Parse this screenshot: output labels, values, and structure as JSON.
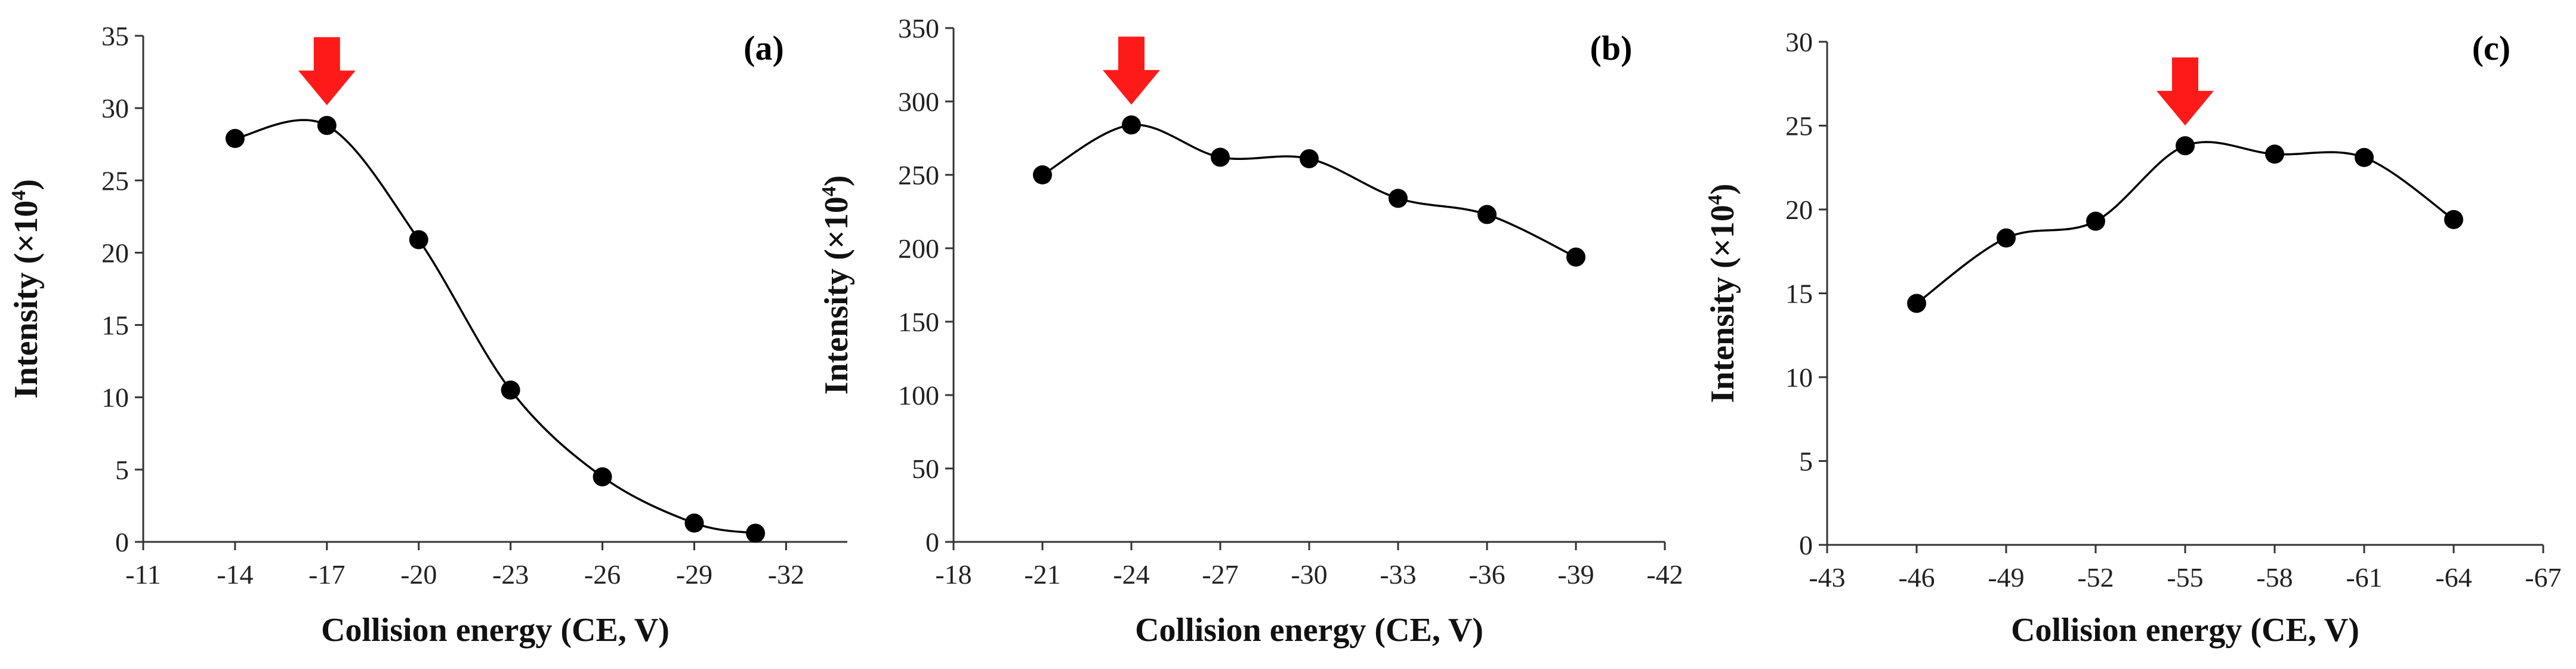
{
  "chart_data": [
    {
      "type": "line",
      "panel_label": "(a)",
      "title": "",
      "xlabel": "Collision energy (CE, V)",
      "ylabel": "Intensity (×10",
      "ylabel_sup": "4",
      "ylabel_end": ")",
      "xlim": [
        -11,
        -34
      ],
      "xticks": [
        -11,
        -14,
        -17,
        -20,
        -23,
        -26,
        -29,
        -32
      ],
      "ylim": [
        0,
        35
      ],
      "yticks": [
        0,
        5,
        10,
        15,
        20,
        25,
        30,
        35
      ],
      "series": [
        {
          "name": "Intensity",
          "x": [
            -14,
            -17,
            -20,
            -23,
            -26,
            -29,
            -31
          ],
          "y": [
            27.9,
            28.8,
            20.9,
            10.5,
            4.5,
            1.3,
            0.6
          ]
        }
      ],
      "highlight_x": -17,
      "highlight_color": "#ff1a1a",
      "grid": false
    },
    {
      "type": "line",
      "panel_label": "(b)",
      "title": "",
      "xlabel": "Collision energy (CE, V)",
      "ylabel": "Intensity (×10",
      "ylabel_sup": "4",
      "ylabel_end": ")",
      "xlim": [
        -18,
        -42
      ],
      "xticks": [
        -18,
        -21,
        -24,
        -27,
        -30,
        -33,
        -36,
        -39,
        -42
      ],
      "ylim": [
        0,
        350
      ],
      "yticks": [
        0,
        50,
        100,
        150,
        200,
        250,
        300,
        350
      ],
      "series": [
        {
          "name": "Intensity",
          "x": [
            -21,
            -24,
            -27,
            -30,
            -33,
            -36,
            -39
          ],
          "y": [
            250,
            284,
            262,
            261,
            234,
            223,
            194
          ]
        }
      ],
      "highlight_x": -24,
      "highlight_color": "#ff1a1a",
      "grid": false
    },
    {
      "type": "line",
      "panel_label": "(c)",
      "title": "",
      "xlabel": "Collision energy (CE, V)",
      "ylabel": "Intensity (×10",
      "ylabel_sup": "4",
      "ylabel_end": ")",
      "xlim": [
        -43,
        -67
      ],
      "xticks": [
        -43,
        -46,
        -49,
        -52,
        -55,
        -58,
        -61,
        -64,
        -67
      ],
      "ylim": [
        0,
        30
      ],
      "yticks": [
        0,
        5,
        10,
        15,
        20,
        25,
        30
      ],
      "series": [
        {
          "name": "Intensity",
          "x": [
            -46,
            -49,
            -52,
            -55,
            -58,
            -61,
            -64
          ],
          "y": [
            14.4,
            18.3,
            19.3,
            23.8,
            23.3,
            23.1,
            19.4
          ]
        }
      ],
      "highlight_x": -55,
      "highlight_color": "#ff1a1a",
      "grid": false
    }
  ]
}
